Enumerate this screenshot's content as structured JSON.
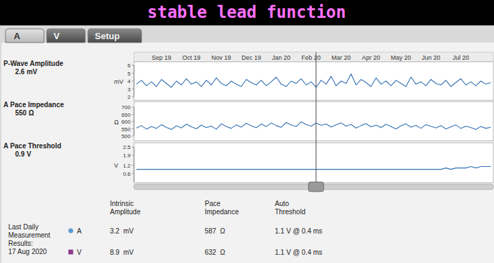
{
  "header": {
    "title": "stable lead function"
  },
  "tabs": [
    "A",
    "V",
    "Setup"
  ],
  "chart_data": [
    {
      "type": "line",
      "title": "P-Wave Amplitude",
      "subtitle": "2.6 mV",
      "y_label": "mV",
      "categories": [
        null,
        null,
        null,
        null,
        null,
        "Sep 19",
        null,
        null,
        null,
        null,
        null,
        "Oct 19",
        null,
        null,
        null,
        null,
        null,
        "Nov 19",
        null,
        null,
        null,
        null,
        null,
        "Dec 19",
        null,
        null,
        null,
        null,
        null,
        "Jan 20",
        null,
        null,
        null,
        null,
        null,
        "Feb 20",
        null,
        null,
        null,
        null,
        null,
        "Mar 20",
        null,
        null,
        null,
        null,
        null,
        "Apr 20",
        null,
        null,
        null,
        null,
        null,
        "May 20",
        null,
        null,
        null,
        null,
        null,
        "Jun 20",
        null,
        null,
        null,
        null,
        null,
        "Jul 20",
        null,
        null,
        null,
        null,
        null,
        null
      ],
      "values": [
        3.6,
        4.1,
        3.4,
        3.9,
        3.3,
        4.2,
        3.7,
        3.2,
        4.0,
        3.5,
        4.3,
        3.6,
        3.9,
        3.3,
        4.1,
        3.5,
        4.4,
        3.7,
        3.4,
        4.0,
        3.6,
        3.3,
        4.2,
        3.8,
        3.5,
        4.1,
        3.4,
        3.9,
        4.5,
        3.6,
        3.3,
        4.0,
        3.7,
        4.3,
        3.5,
        3.9,
        3.2,
        4.1,
        3.6,
        4.6,
        3.4,
        4.0,
        3.7,
        4.9,
        3.5,
        4.2,
        3.8,
        3.3,
        4.4,
        3.6,
        4.0,
        3.4,
        4.1,
        3.7,
        3.3,
        4.5,
        3.6,
        3.9,
        3.4,
        4.2,
        3.7,
        3.5,
        4.1,
        3.3,
        3.8,
        4.3,
        3.5,
        3.9,
        3.4,
        4.0,
        3.6,
        3.8
      ],
      "color": "#2f6fb0",
      "ylim": [
        2,
        6
      ],
      "yticks": [
        2,
        3,
        4,
        5,
        6
      ],
      "grid": false
    },
    {
      "type": "line",
      "title": "A Pace Impedance",
      "subtitle": "550 Ω",
      "y_label": "Ω",
      "categories": [
        null,
        null,
        null,
        null,
        null,
        "Sep 19",
        null,
        null,
        null,
        null,
        null,
        "Oct 19",
        null,
        null,
        null,
        null,
        null,
        "Nov 19",
        null,
        null,
        null,
        null,
        null,
        "Dec 19",
        null,
        null,
        null,
        null,
        null,
        "Jan 20",
        null,
        null,
        null,
        null,
        null,
        "Feb 20",
        null,
        null,
        null,
        null,
        null,
        "Mar 20",
        null,
        null,
        null,
        null,
        null,
        "Apr 20",
        null,
        null,
        null,
        null,
        null,
        "May 20",
        null,
        null,
        null,
        null,
        null,
        "Jun 20",
        null,
        null,
        null,
        null,
        null,
        "Jul 20",
        null,
        null,
        null,
        null,
        null,
        null
      ],
      "values": [
        555,
        572,
        548,
        566,
        552,
        579,
        560,
        545,
        570,
        556,
        582,
        563,
        550,
        575,
        558,
        568,
        547,
        584,
        566,
        553,
        577,
        561,
        588,
        570,
        557,
        583,
        565,
        590,
        572,
        560,
        594,
        576,
        565,
        598,
        580,
        568,
        589,
        574,
        583,
        562,
        577,
        591,
        568,
        580,
        555,
        572,
        586,
        563,
        575,
        558,
        581,
        566,
        549,
        570,
        584,
        561,
        574,
        553,
        579,
        567,
        556,
        572,
        549,
        563,
        577,
        552,
        568,
        558,
        545,
        566,
        553,
        561
      ],
      "color": "#2f6fb0",
      "ylim": [
        500,
        700
      ],
      "yticks": [
        500,
        550,
        600,
        650,
        700
      ],
      "grid": false,
      "tick_labels": "y"
    },
    {
      "type": "line",
      "title": "A Pace Threshold",
      "subtitle": "0.9 V",
      "y_label": "V",
      "categories": [
        null,
        null,
        null,
        null,
        null,
        "Sep 19",
        null,
        null,
        null,
        null,
        null,
        "Oct 19",
        null,
        null,
        null,
        null,
        null,
        "Nov 19",
        null,
        null,
        null,
        null,
        null,
        "Dec 19",
        null,
        null,
        null,
        null,
        null,
        "Jan 20",
        null,
        null,
        null,
        null,
        null,
        "Feb 20",
        null,
        null,
        null,
        null,
        null,
        "Mar 20",
        null,
        null,
        null,
        null,
        null,
        "Apr 20",
        null,
        null,
        null,
        null,
        null,
        "May 20",
        null,
        null,
        null,
        null,
        null,
        "Jun 20",
        null,
        null,
        null,
        null,
        null,
        "Jul 20",
        null,
        null,
        null,
        null,
        null,
        null
      ],
      "values": [
        0.9,
        0.9,
        0.9,
        0.9,
        0.9,
        0.9,
        0.9,
        0.9,
        0.9,
        0.9,
        0.9,
        0.9,
        0.9,
        0.9,
        0.9,
        0.9,
        0.9,
        0.9,
        0.9,
        0.9,
        0.9,
        0.9,
        0.9,
        0.9,
        0.9,
        0.9,
        0.9,
        0.9,
        0.9,
        0.9,
        0.9,
        0.9,
        0.9,
        0.9,
        0.9,
        0.9,
        0.9,
        0.9,
        0.9,
        0.9,
        0.9,
        0.9,
        0.9,
        0.9,
        0.9,
        0.9,
        0.9,
        0.9,
        0.9,
        0.9,
        0.9,
        0.9,
        0.9,
        0.9,
        0.9,
        0.9,
        0.9,
        0.9,
        0.9,
        0.9,
        0.9,
        0.9,
        1.0,
        0.9,
        1.0,
        1.0,
        1.0,
        1.1,
        1.0,
        1.1,
        1.1,
        1.1
      ],
      "color": "#2f6fb0",
      "ylim": [
        0,
        2.5
      ],
      "yticks": [
        0.6,
        1.2,
        1.9,
        2.5
      ],
      "grid": false,
      "tick_labels": "y"
    }
  ],
  "summary": {
    "row_label": [
      "Last Daily",
      "Measurement",
      "Results:",
      "17 Aug 2020"
    ],
    "columns": [
      [
        "Intrinsic",
        "Amplitude"
      ],
      [
        "Pace",
        "Impedance"
      ],
      [
        "Auto",
        "Threshold"
      ]
    ],
    "rows": [
      {
        "name": "A",
        "color": "#5b9bd5",
        "marker": "circle",
        "cells": [
          "3.2  mV",
          "587  Ω",
          "1.1 V @ 0.4 ms"
        ]
      },
      {
        "name": "V",
        "color": "#8e3a8e",
        "marker": "square",
        "cells": [
          "8.9  mV",
          "632  Ω",
          "1.1 V @ 0.4 ms"
        ]
      }
    ]
  }
}
